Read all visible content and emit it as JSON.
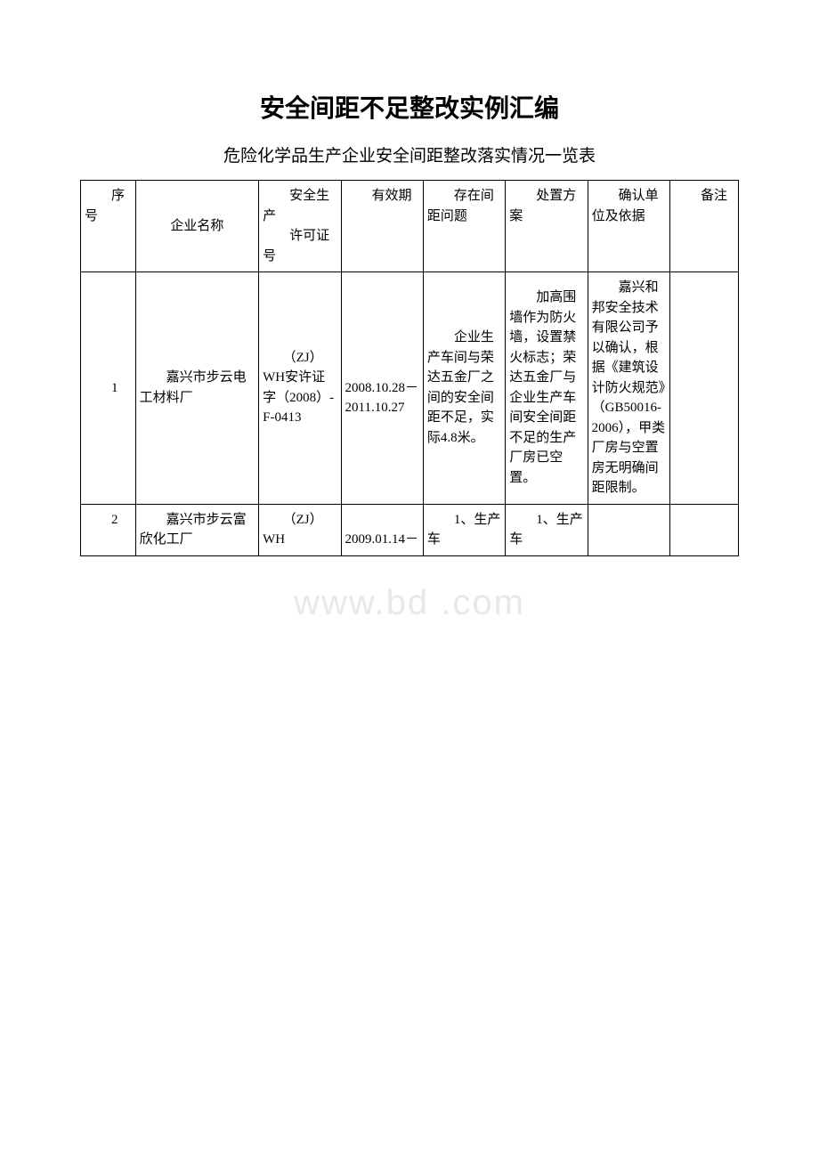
{
  "title": "安全间距不足整改实例汇编",
  "subtitle": "危险化学品生产企业安全间距整改落实情况一览表",
  "watermark": "www.bd   .com",
  "headers": {
    "seq": "序号",
    "name": "企业名称",
    "cert": "安全生产\n许可证号",
    "valid": "有效期",
    "issue": "存在间距问题",
    "plan": "处置方案",
    "confirm": "确认单位及依据",
    "note": "备注"
  },
  "rows": [
    {
      "seq": "1",
      "name": "嘉兴市步云电工材料厂",
      "cert": "（ZJ）WH安许证字（2008）-F-0413",
      "valid": "2008.10.28－2011.10.27",
      "issue": "企业生产车间与荣达五金厂之间的安全间距不足，实际4.8米。",
      "plan": "加高围墙作为防火墙，设置禁火标志；荣达五金厂与企业生产车间安全间距不足的生产厂房已空置。",
      "confirm": "嘉兴和邦安全技术有限公司予以确认，根据《建筑设计防火规范》（GB50016-2006），甲类厂房与空置房无明确间距限制。",
      "note": ""
    },
    {
      "seq": "2",
      "name": "嘉兴市步云富欣化工厂",
      "cert": "（ZJ）WH",
      "valid": "2009.01.14－",
      "issue": "1、生产车",
      "plan": "1、生产车",
      "confirm": "",
      "note": ""
    }
  ]
}
